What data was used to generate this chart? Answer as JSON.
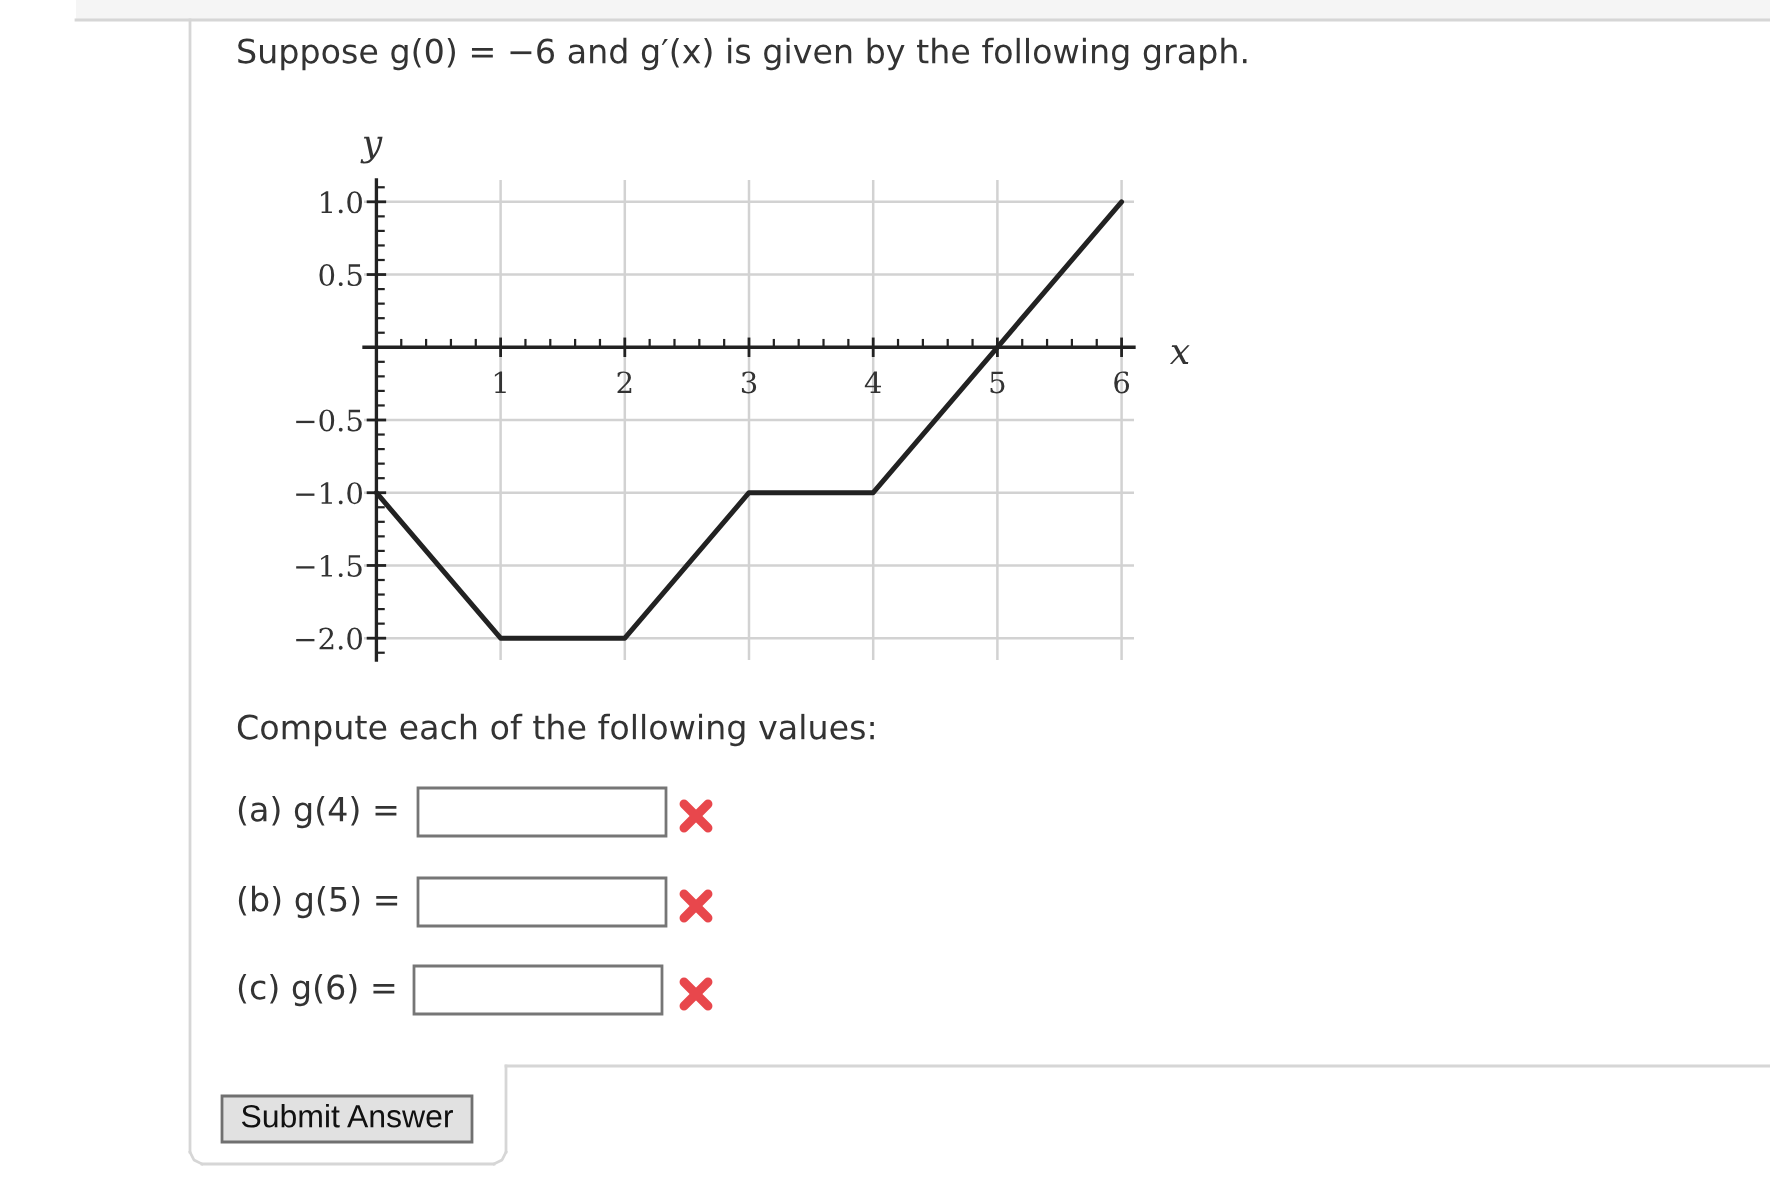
{
  "chart_data": {
    "type": "line",
    "title": "Suppose g(0) = −6 and g′(x) is given by the following graph.",
    "xlabel": "x",
    "ylabel": "y",
    "x": [
      0,
      1,
      2,
      3,
      4,
      5,
      6
    ],
    "values": [
      -1,
      -2,
      -2,
      -1,
      -1,
      0,
      1
    ],
    "color": "#222222",
    "line_style": "solid",
    "xlim": [
      -0.1,
      6.1
    ],
    "ylim": [
      -2.15,
      1.15
    ],
    "xticks": [
      1,
      2,
      3,
      4,
      5,
      6
    ],
    "yticks": [
      {
        "value": -2,
        "label": "−2.0"
      },
      {
        "value": -1.5,
        "label": "−1.5"
      },
      {
        "value": -1,
        "label": "−1.0"
      },
      {
        "value": -0.5,
        "label": "−0.5"
      },
      0.5,
      {
        "value": 1,
        "label": "1.0"
      }
    ],
    "grid": true,
    "annotations": [
      "Compute each of the following values:",
      "(a) g(4) =",
      "(b) g(5) =",
      "(c) g(6) =",
      "Submit Answer"
    ]
  }
}
